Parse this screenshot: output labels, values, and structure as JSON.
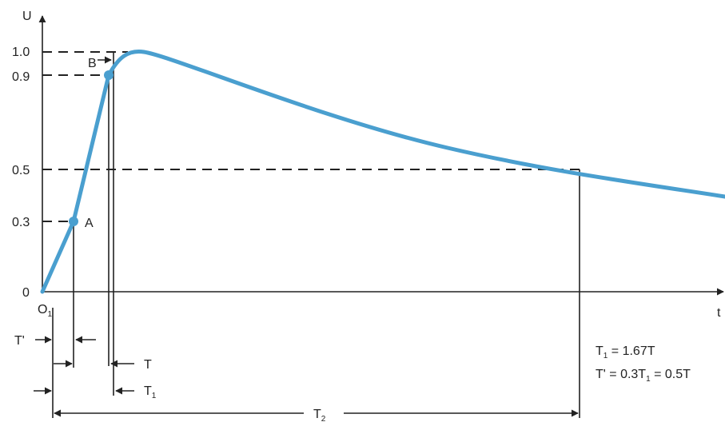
{
  "axes": {
    "y_label": "U",
    "x_label": "t",
    "origin_label": "0",
    "origin_prefix": "O",
    "origin_sub": "1",
    "y_ticks": [
      "1.0",
      "0.9",
      "0.5",
      "0.3",
      "0"
    ]
  },
  "points": {
    "a": "A",
    "b": "B"
  },
  "intervals": {
    "t_prime": "T'",
    "t": "T",
    "t1_main": "T",
    "t1_sub": "1",
    "t2_main": "T",
    "t2_sub": "2"
  },
  "formulas": {
    "line1_a": "T",
    "line1_sub": "1",
    "line1_b": " = 1.67T",
    "line2_a": "T' = 0.3T",
    "line2_sub": "1",
    "line2_b": " = 0.5T"
  },
  "colors": {
    "curve": "#4a9fcf",
    "ink": "#222222"
  }
}
